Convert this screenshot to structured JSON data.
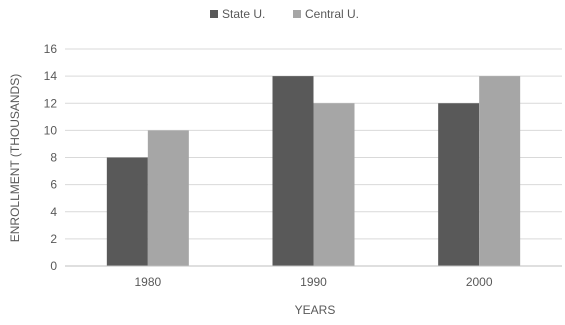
{
  "chart_data": {
    "type": "bar",
    "categories": [
      "1980",
      "1990",
      "2000"
    ],
    "series": [
      {
        "name": "State U.",
        "values": [
          8,
          14,
          12
        ],
        "color": "#595959"
      },
      {
        "name": "Central U.",
        "values": [
          10,
          12,
          14
        ],
        "color": "#a6a6a6"
      }
    ],
    "title": "",
    "xlabel": "YEARS",
    "ylabel": "ENROLLMENT (THOUSANDS)",
    "ylim": [
      0,
      16
    ],
    "yticks": [
      "0",
      "2",
      "4",
      "6",
      "8",
      "10",
      "12",
      "14",
      "16"
    ],
    "grid": true,
    "legend_position": "top-center",
    "gridline_color": "#d9d9d9",
    "axis_color": "#bfbfbf"
  }
}
